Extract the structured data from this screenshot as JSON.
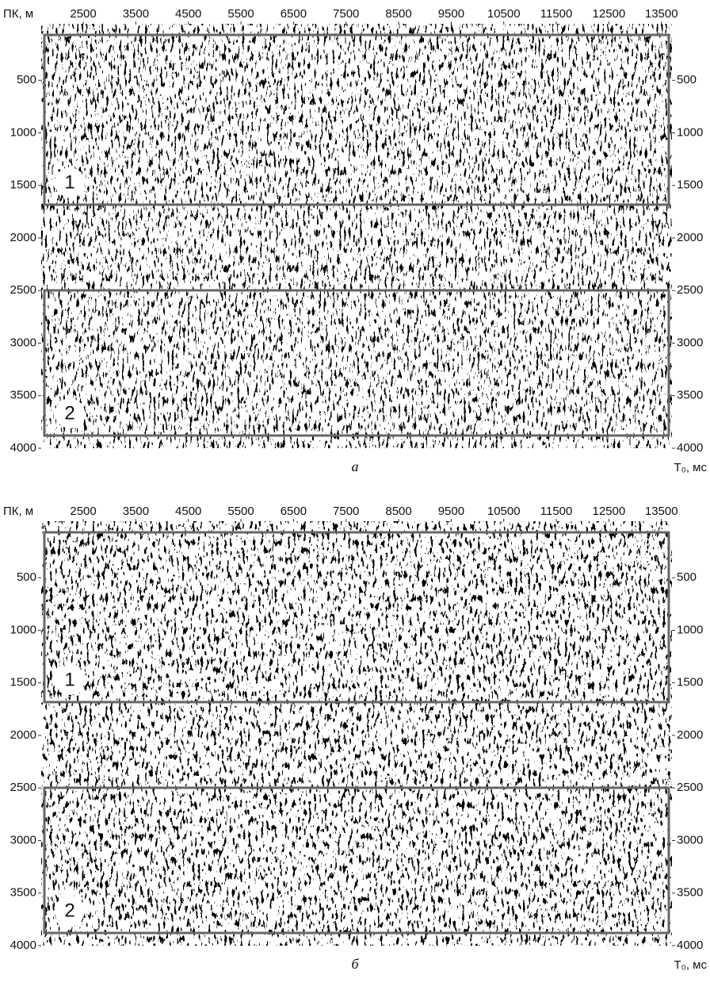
{
  "panels": [
    {
      "x_axis": {
        "label": "ПК, м",
        "xlim": [
          1700,
          13700
        ],
        "ticks": [
          2500,
          3500,
          4500,
          5500,
          6500,
          7500,
          8500,
          9500,
          10500,
          11500,
          12500,
          13500
        ]
      },
      "y_axis": {
        "label": "T₀, мс",
        "ylim": [
          0,
          4000
        ],
        "ticks": [
          500,
          1000,
          1500,
          2000,
          2500,
          3000,
          3500,
          4000
        ]
      },
      "zones": [
        "1",
        "2"
      ],
      "caption": "а"
    },
    {
      "x_axis": {
        "label": "ПК, м",
        "xlim": [
          1700,
          13700
        ],
        "ticks": [
          2500,
          3500,
          4500,
          5500,
          6500,
          7500,
          8500,
          9500,
          10500,
          11500,
          12500,
          13500
        ]
      },
      "y_axis": {
        "label": "T₀, мс",
        "ylim": [
          0,
          4000
        ],
        "ticks": [
          500,
          1000,
          1500,
          2000,
          2500,
          3000,
          3500,
          4000
        ]
      },
      "zones": [
        "1",
        "2"
      ],
      "caption": "б"
    }
  ]
}
